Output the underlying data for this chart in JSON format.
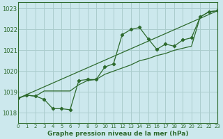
{
  "title": "Graphe pression niveau de la mer (hPa)",
  "bg_color": "#cce8ed",
  "grid_color": "#aacccc",
  "line_color": "#2d6a2d",
  "x_min": 0,
  "x_max": 23,
  "y_min": 1017.5,
  "y_max": 1023.3,
  "y_ticks": [
    1018,
    1019,
    1020,
    1021,
    1022,
    1023
  ],
  "x_ticks": [
    0,
    1,
    2,
    3,
    4,
    5,
    6,
    7,
    8,
    9,
    10,
    11,
    12,
    13,
    14,
    15,
    16,
    17,
    18,
    19,
    20,
    21,
    22,
    23
  ],
  "line1": [
    [
      0,
      1018.7
    ],
    [
      1,
      1018.85
    ],
    [
      2,
      1018.8
    ],
    [
      3,
      1018.65
    ],
    [
      4,
      1018.2
    ],
    [
      5,
      1018.2
    ],
    [
      6,
      1018.15
    ],
    [
      7,
      1019.55
    ],
    [
      8,
      1019.6
    ],
    [
      9,
      1019.6
    ],
    [
      10,
      1020.2
    ],
    [
      11,
      1020.35
    ],
    [
      12,
      1021.75
    ],
    [
      13,
      1022.0
    ],
    [
      14,
      1022.1
    ],
    [
      15,
      1021.55
    ],
    [
      16,
      1021.05
    ],
    [
      17,
      1021.3
    ],
    [
      18,
      1021.2
    ],
    [
      19,
      1021.5
    ],
    [
      20,
      1021.6
    ],
    [
      21,
      1022.6
    ],
    [
      22,
      1022.85
    ],
    [
      23,
      1022.9
    ]
  ],
  "line2": [
    [
      0,
      1018.7
    ],
    [
      1,
      1018.85
    ],
    [
      2,
      1018.8
    ],
    [
      3,
      1019.05
    ],
    [
      4,
      1019.05
    ],
    [
      5,
      1019.05
    ],
    [
      6,
      1019.05
    ],
    [
      7,
      1019.35
    ],
    [
      8,
      1019.55
    ],
    [
      9,
      1019.6
    ],
    [
      10,
      1019.85
    ],
    [
      11,
      1020.0
    ],
    [
      12,
      1020.15
    ],
    [
      13,
      1020.3
    ],
    [
      14,
      1020.5
    ],
    [
      15,
      1020.6
    ],
    [
      16,
      1020.75
    ],
    [
      17,
      1020.85
    ],
    [
      18,
      1021.0
    ],
    [
      19,
      1021.1
    ],
    [
      20,
      1021.2
    ],
    [
      21,
      1022.6
    ],
    [
      22,
      1022.85
    ],
    [
      23,
      1022.9
    ]
  ],
  "line3": [
    [
      0,
      1018.7
    ],
    [
      23,
      1022.9
    ]
  ]
}
